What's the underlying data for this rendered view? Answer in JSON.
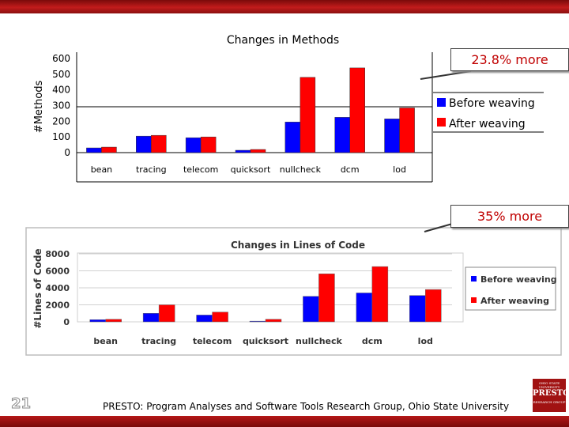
{
  "colors": {
    "before": "#0000ff",
    "after": "#ff0000",
    "accent": "#c00000",
    "banner": "#a81414"
  },
  "chart_data": [
    {
      "type": "bar",
      "title": "Changes in Methods",
      "ylabel": "#Methods",
      "xlabel": "",
      "categories": [
        "bean",
        "tracing",
        "telecom",
        "quicksort",
        "nullcheck",
        "dcm",
        "lod"
      ],
      "series": [
        {
          "name": "Before weaving",
          "values": [
            30,
            105,
            95,
            15,
            195,
            225,
            215
          ]
        },
        {
          "name": "After weaving",
          "values": [
            35,
            110,
            100,
            20,
            480,
            540,
            285
          ]
        }
      ],
      "ylim": [
        0,
        600
      ],
      "yticks": [
        "0",
        "100",
        "200",
        "300",
        "400",
        "500",
        "600"
      ],
      "legend": "right",
      "grid": false,
      "annotation": "23.8% more"
    },
    {
      "type": "bar",
      "title": "Changes in Lines of Code",
      "ylabel": "#Lines of Code",
      "xlabel": "",
      "categories": [
        "bean",
        "tracing",
        "telecom",
        "quicksort",
        "nullcheck",
        "dcm",
        "lod"
      ],
      "series": [
        {
          "name": "Before weaving",
          "values": [
            250,
            1000,
            800,
            80,
            3000,
            3400,
            3100
          ]
        },
        {
          "name": "After weaving",
          "values": [
            300,
            2000,
            1150,
            300,
            5650,
            6500,
            3800
          ]
        }
      ],
      "ylim": [
        0,
        8000
      ],
      "yticks": [
        "0",
        "2000",
        "4000",
        "6000",
        "8000"
      ],
      "legend": "right",
      "grid": true,
      "annotation": "35% more"
    }
  ],
  "slide": {
    "number": "21",
    "footer": "PRESTO: Program Analyses and Software Tools Research Group, Ohio State University"
  },
  "logo": {
    "top": "OHIO STATE UNIVERSITY",
    "name": "PRESTO",
    "bottom": "RESEARCH GROUP"
  }
}
